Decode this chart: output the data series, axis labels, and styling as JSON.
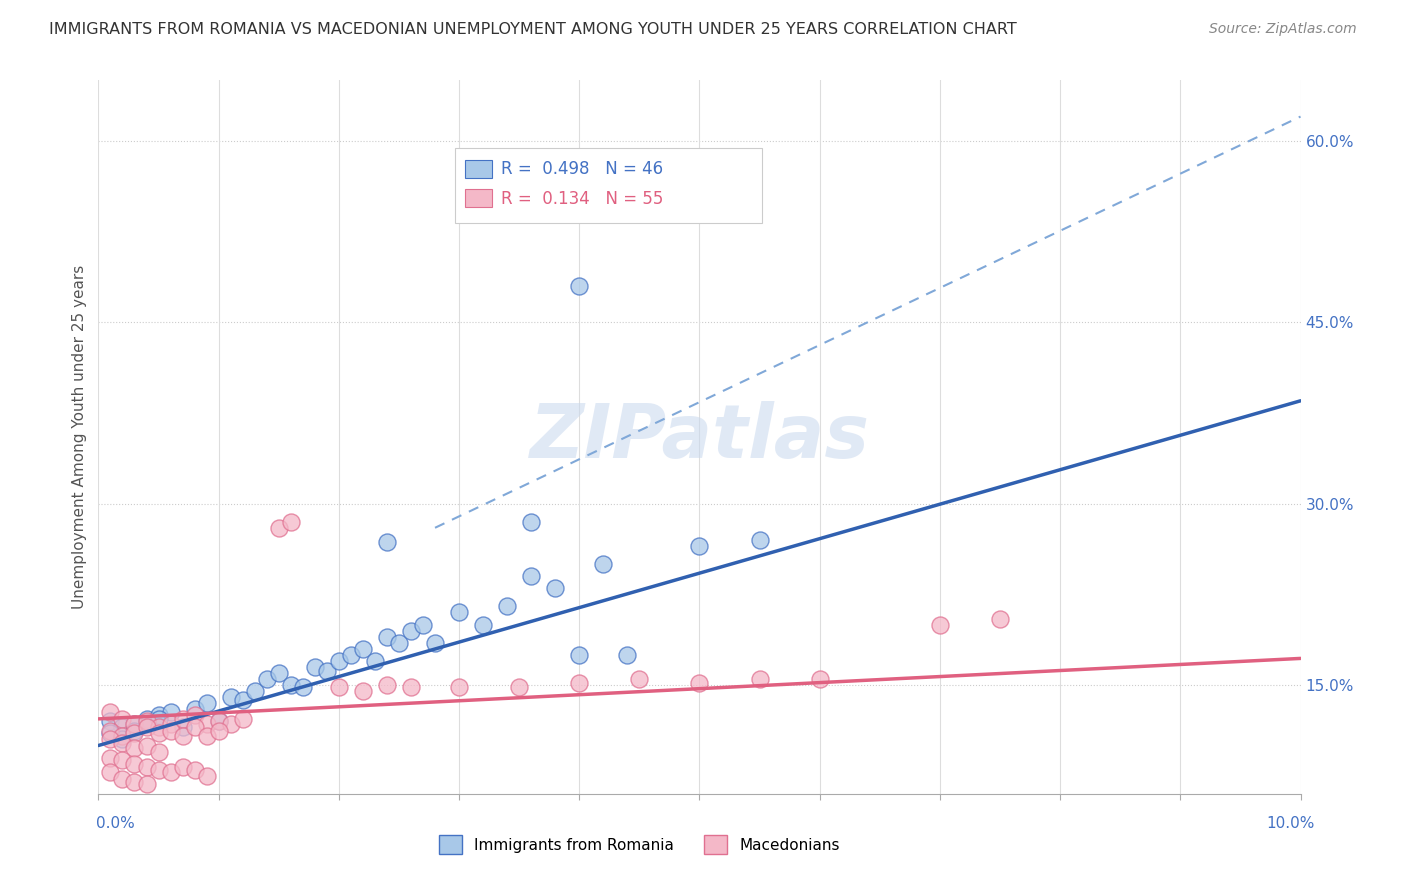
{
  "title": "IMMIGRANTS FROM ROMANIA VS MACEDONIAN UNEMPLOYMENT AMONG YOUTH UNDER 25 YEARS CORRELATION CHART",
  "source": "Source: ZipAtlas.com",
  "ylabel": "Unemployment Among Youth under 25 years",
  "legend_label_blue": "Immigrants from Romania",
  "legend_label_pink": "Macedonians",
  "r_blue": "0.498",
  "n_blue": "46",
  "r_pink": "0.134",
  "n_pink": "55",
  "watermark": "ZIPatlas",
  "blue_fill": "#a8c8e8",
  "pink_fill": "#f4b8c8",
  "blue_edge": "#4472c4",
  "pink_edge": "#e07090",
  "blue_line": "#3060b0",
  "pink_line": "#e06080",
  "dash_line": "#80a8d8",
  "xmin": 0.0,
  "xmax": 0.1,
  "ymin": 0.06,
  "ymax": 0.65,
  "blue_trend_x": [
    0.0,
    0.1
  ],
  "blue_trend_y": [
    0.1,
    0.385
  ],
  "pink_trend_x": [
    0.0,
    0.1
  ],
  "pink_trend_y": [
    0.122,
    0.172
  ],
  "dash_trend_x": [
    0.028,
    0.1
  ],
  "dash_trend_y": [
    0.28,
    0.62
  ],
  "blue_scatter": [
    [
      0.001,
      0.12
    ],
    [
      0.002,
      0.115
    ],
    [
      0.003,
      0.118
    ],
    [
      0.004,
      0.122
    ],
    [
      0.005,
      0.125
    ],
    [
      0.006,
      0.128
    ],
    [
      0.007,
      0.115
    ],
    [
      0.008,
      0.13
    ],
    [
      0.009,
      0.135
    ],
    [
      0.01,
      0.12
    ],
    [
      0.011,
      0.14
    ],
    [
      0.012,
      0.138
    ],
    [
      0.013,
      0.145
    ],
    [
      0.014,
      0.155
    ],
    [
      0.015,
      0.16
    ],
    [
      0.016,
      0.15
    ],
    [
      0.017,
      0.148
    ],
    [
      0.018,
      0.165
    ],
    [
      0.019,
      0.162
    ],
    [
      0.02,
      0.17
    ],
    [
      0.021,
      0.175
    ],
    [
      0.022,
      0.18
    ],
    [
      0.023,
      0.17
    ],
    [
      0.024,
      0.19
    ],
    [
      0.025,
      0.185
    ],
    [
      0.026,
      0.195
    ],
    [
      0.027,
      0.2
    ],
    [
      0.028,
      0.185
    ],
    [
      0.03,
      0.21
    ],
    [
      0.032,
      0.2
    ],
    [
      0.034,
      0.215
    ],
    [
      0.036,
      0.24
    ],
    [
      0.038,
      0.23
    ],
    [
      0.04,
      0.175
    ],
    [
      0.042,
      0.25
    ],
    [
      0.044,
      0.175
    ],
    [
      0.05,
      0.265
    ],
    [
      0.055,
      0.27
    ],
    [
      0.04,
      0.48
    ],
    [
      0.001,
      0.11
    ],
    [
      0.002,
      0.105
    ],
    [
      0.003,
      0.112
    ],
    [
      0.004,
      0.118
    ],
    [
      0.005,
      0.122
    ],
    [
      0.024,
      0.268
    ],
    [
      0.036,
      0.285
    ]
  ],
  "pink_scatter": [
    [
      0.001,
      0.128
    ],
    [
      0.002,
      0.122
    ],
    [
      0.003,
      0.118
    ],
    [
      0.004,
      0.12
    ],
    [
      0.005,
      0.115
    ],
    [
      0.006,
      0.118
    ],
    [
      0.007,
      0.122
    ],
    [
      0.008,
      0.125
    ],
    [
      0.009,
      0.118
    ],
    [
      0.01,
      0.12
    ],
    [
      0.011,
      0.118
    ],
    [
      0.012,
      0.122
    ],
    [
      0.001,
      0.112
    ],
    [
      0.002,
      0.108
    ],
    [
      0.003,
      0.11
    ],
    [
      0.004,
      0.115
    ],
    [
      0.005,
      0.11
    ],
    [
      0.006,
      0.112
    ],
    [
      0.007,
      0.108
    ],
    [
      0.008,
      0.115
    ],
    [
      0.009,
      0.108
    ],
    [
      0.01,
      0.112
    ],
    [
      0.001,
      0.105
    ],
    [
      0.002,
      0.102
    ],
    [
      0.003,
      0.098
    ],
    [
      0.004,
      0.1
    ],
    [
      0.005,
      0.095
    ],
    [
      0.001,
      0.09
    ],
    [
      0.002,
      0.088
    ],
    [
      0.003,
      0.085
    ],
    [
      0.004,
      0.082
    ],
    [
      0.005,
      0.08
    ],
    [
      0.006,
      0.078
    ],
    [
      0.007,
      0.082
    ],
    [
      0.008,
      0.08
    ],
    [
      0.009,
      0.075
    ],
    [
      0.001,
      0.078
    ],
    [
      0.002,
      0.072
    ],
    [
      0.003,
      0.07
    ],
    [
      0.004,
      0.068
    ],
    [
      0.015,
      0.28
    ],
    [
      0.016,
      0.285
    ],
    [
      0.02,
      0.148
    ],
    [
      0.022,
      0.145
    ],
    [
      0.024,
      0.15
    ],
    [
      0.026,
      0.148
    ],
    [
      0.03,
      0.148
    ],
    [
      0.035,
      0.148
    ],
    [
      0.04,
      0.152
    ],
    [
      0.045,
      0.155
    ],
    [
      0.05,
      0.152
    ],
    [
      0.055,
      0.155
    ],
    [
      0.06,
      0.155
    ],
    [
      0.07,
      0.2
    ],
    [
      0.075,
      0.205
    ]
  ]
}
